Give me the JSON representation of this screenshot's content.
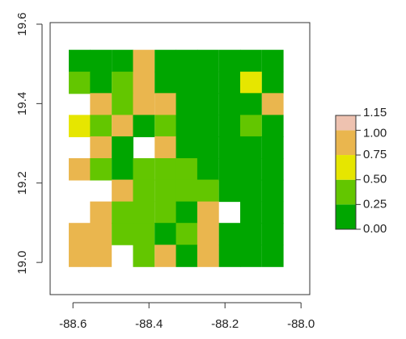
{
  "chart_data": {
    "type": "raster",
    "xlim": [
      -88.66,
      -87.977
    ],
    "ylim": [
      18.919,
      19.604
    ],
    "xticks": [
      -88.6,
      -88.4,
      -88.2,
      {
        "value": -88.0,
        "label": "-88.0"
      }
    ],
    "yticks": [
      {
        "value": 19.0,
        "label": "19.0"
      },
      19.2,
      19.4,
      19.6
    ],
    "x": [
      -88.583,
      -88.527,
      -88.47,
      -88.414,
      -88.357,
      -88.301,
      -88.245,
      -88.188,
      -88.132,
      -88.075
    ],
    "y": [
      19.508,
      19.453,
      19.399,
      19.344,
      19.29,
      19.235,
      19.181,
      19.126,
      19.072,
      19.017
    ],
    "z": [
      [
        0.2,
        0.15,
        0.15,
        0.8,
        0.2,
        0.1,
        0.1,
        0.15,
        0.1,
        0.1
      ],
      [
        0.3,
        0.2,
        0.5,
        0.8,
        0.15,
        0.2,
        0.1,
        0.1,
        0.6,
        0.2
      ],
      [
        null,
        0.8,
        0.3,
        0.9,
        0.8,
        0.15,
        0.1,
        0.2,
        0.15,
        0.85
      ],
      [
        0.6,
        0.3,
        0.8,
        0.2,
        0.3,
        0.1,
        0.2,
        0.1,
        0.3,
        0.15
      ],
      [
        null,
        0.8,
        0.2,
        null,
        0.8,
        0.2,
        0.15,
        0.2,
        0.1,
        0.2
      ],
      [
        0.8,
        0.3,
        0.2,
        0.3,
        0.3,
        0.4,
        0.2,
        0.15,
        0.2,
        0.1
      ],
      [
        null,
        null,
        0.8,
        0.4,
        0.45,
        0.3,
        0.3,
        0.2,
        0.15,
        0.2
      ],
      [
        null,
        0.8,
        0.3,
        0.4,
        0.3,
        0.25,
        0.8,
        null,
        0.15,
        0.1
      ],
      [
        0.8,
        0.85,
        0.3,
        0.35,
        0.2,
        0.3,
        0.9,
        0.2,
        0.15,
        0.2
      ],
      [
        0.9,
        0.85,
        null,
        0.3,
        0.8,
        0.2,
        0.8,
        0.2,
        0.15,
        0.15
      ]
    ],
    "legend_ticks": [
      {
        "value": 0,
        "label": "0.00"
      },
      0.25,
      {
        "value": 0.5,
        "label": "0.50"
      },
      0.75,
      {
        "value": 1,
        "label": "1.00"
      },
      1.15
    ],
    "colors": [
      "#00A600",
      "#63C600",
      "#E6E600",
      "#EAB64E",
      "#EEC2B0"
    ]
  }
}
